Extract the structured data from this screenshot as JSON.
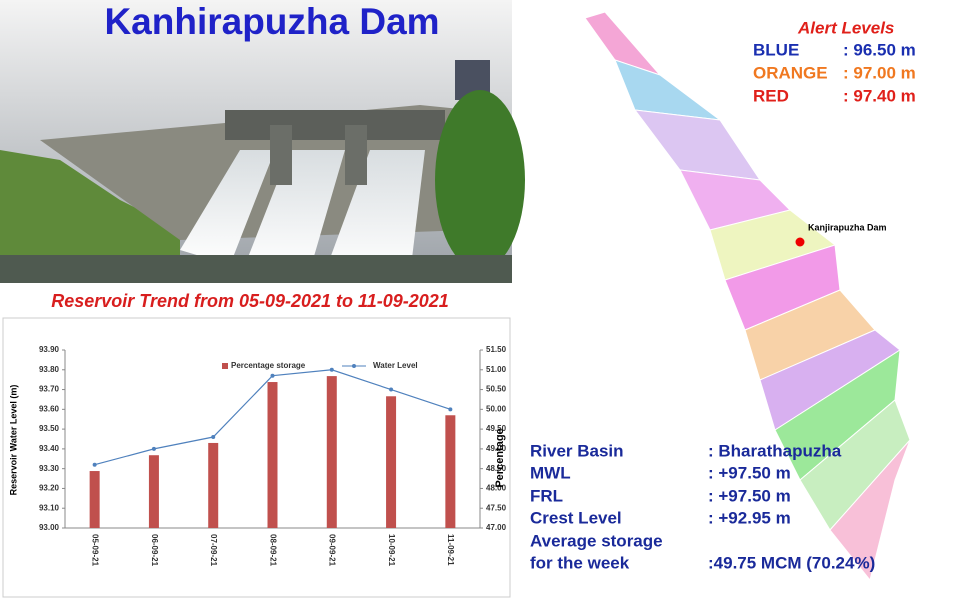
{
  "title": "Kanhirapuzha Dam",
  "subtitle": "Reservoir Trend from 05-09-2021 to 11-09-2021",
  "alert_levels": {
    "heading": "Alert Levels",
    "rows": [
      [
        "BLUE",
        ": 96.50 m"
      ],
      [
        "ORANGE",
        ": 97.00 m"
      ],
      [
        "RED",
        ": 97.40 m"
      ]
    ]
  },
  "map_label": "Kanjirapuzha Dam",
  "info": {
    "rows": [
      [
        "River Basin",
        ": Bharathapuzha"
      ],
      [
        "MWL",
        ": +97.50 m"
      ],
      [
        "FRL",
        ": +97.50 m"
      ],
      [
        "Crest Level",
        ": +92.95 m"
      ]
    ],
    "average": {
      "label_lines": [
        "Average storage",
        "for the week"
      ],
      "value": ":49.75 MCM (70.24%)"
    }
  },
  "chart_data": {
    "type": "combo",
    "ylabel": "Reservoir Water Level (m)",
    "y2label": "Percentage",
    "categories": [
      "05-09-21",
      "06-09-21",
      "07-09-21",
      "08-09-21",
      "09-09-21",
      "10-09-21",
      "11-09-21"
    ],
    "series": [
      {
        "name": "Percentage storage",
        "type": "bar",
        "axis": "y2",
        "color": "#c0504d",
        "values": [
          48.44,
          48.84,
          49.15,
          50.69,
          50.84,
          50.33,
          49.85
        ]
      },
      {
        "name": "Water Level",
        "type": "line",
        "color": "#4f81bd",
        "values": [
          93.32,
          93.4,
          93.46,
          93.77,
          93.8,
          93.7,
          93.6
        ]
      }
    ],
    "ylim": [
      93.0,
      93.9
    ],
    "yticks": [
      {
        "value": 93.0,
        "label": "93.00"
      },
      {
        "value": 93.1,
        "label": "93.10"
      },
      {
        "value": 93.2,
        "label": "93.20"
      },
      {
        "value": 93.3,
        "label": "93.30"
      },
      {
        "value": 93.4,
        "label": "93.40"
      },
      {
        "value": 93.5,
        "label": "93.50"
      },
      {
        "value": 93.6,
        "label": "93.60"
      },
      {
        "value": 93.7,
        "label": "93.70"
      },
      {
        "value": 93.8,
        "label": "93.80"
      },
      {
        "value": 93.9,
        "label": "93.90"
      }
    ],
    "y2lim": [
      47.0,
      51.5
    ],
    "y2ticks": [
      {
        "value": 47.0,
        "label": "47.00"
      },
      {
        "value": 47.5,
        "label": "47.50"
      },
      {
        "value": 48.0,
        "label": "48.00"
      },
      {
        "value": 48.5,
        "label": "48.50"
      },
      {
        "value": 49.0,
        "label": "49.00"
      },
      {
        "value": 49.5,
        "label": "49.50"
      },
      {
        "value": 50.0,
        "label": "50.00"
      },
      {
        "value": 50.5,
        "label": "50.50"
      },
      {
        "value": 51.0,
        "label": "51.00"
      },
      {
        "value": 51.5,
        "label": "51.50"
      }
    ],
    "grid": false,
    "legend": "top"
  }
}
